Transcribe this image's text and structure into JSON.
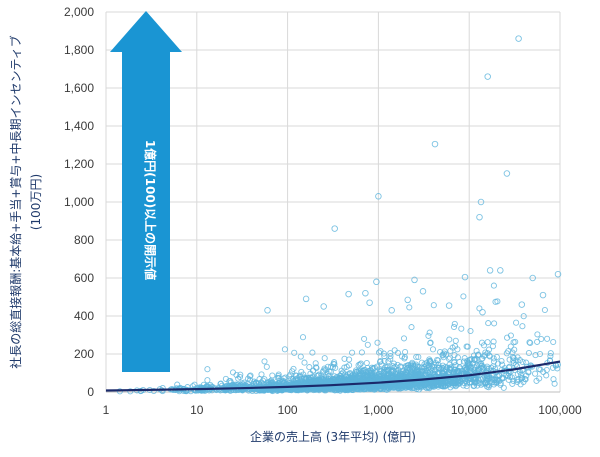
{
  "chart_data": {
    "type": "scatter",
    "title": "",
    "xlabel": "企業の売上高 (3年平均) (億円)",
    "ylabel": "社長の総直接報酬:基本給+手当+賞与+中長期インセンティブ",
    "ylabel_unit": "(100万円)",
    "x_scale": "log",
    "xlim": [
      1,
      100000
    ],
    "ylim": [
      0,
      2000
    ],
    "x_ticks": [
      1,
      10,
      100,
      1000,
      10000,
      100000
    ],
    "x_tick_labels": [
      "1",
      "10",
      "100",
      "1,000",
      "10,000",
      "100,000"
    ],
    "y_ticks": [
      0,
      200,
      400,
      600,
      800,
      1000,
      1200,
      1400,
      1600,
      1800,
      2000
    ],
    "y_tick_labels": [
      "0",
      "200",
      "400",
      "600",
      "800",
      "1,000",
      "1,200",
      "1,400",
      "1,600",
      "1,800",
      "2,000"
    ],
    "grid": true,
    "annotation": "1億円(100)以上の開示値",
    "colors": {
      "points": "#5db4dc",
      "trend": "#1b2a6b",
      "arrow": "#1a95d3",
      "grid": "#d9d9d9"
    },
    "trend_line": {
      "x": [
        1,
        3,
        10,
        30,
        100,
        300,
        1000,
        3000,
        10000,
        30000,
        100000
      ],
      "y": [
        8,
        11,
        15,
        20,
        27,
        36,
        49,
        65,
        88,
        118,
        160
      ]
    },
    "outliers": [
      {
        "x": 35000,
        "y": 1860
      },
      {
        "x": 16000,
        "y": 1660
      },
      {
        "x": 4200,
        "y": 1305
      },
      {
        "x": 26000,
        "y": 1150
      },
      {
        "x": 13500,
        "y": 1000
      },
      {
        "x": 1000,
        "y": 1030
      },
      {
        "x": 13000,
        "y": 920
      },
      {
        "x": 330,
        "y": 860
      },
      {
        "x": 17000,
        "y": 640
      },
      {
        "x": 22000,
        "y": 640
      },
      {
        "x": 9000,
        "y": 605
      },
      {
        "x": 95000,
        "y": 620
      },
      {
        "x": 50000,
        "y": 600
      },
      {
        "x": 2500,
        "y": 590
      },
      {
        "x": 950,
        "y": 580
      },
      {
        "x": 3100,
        "y": 530
      },
      {
        "x": 720,
        "y": 520
      },
      {
        "x": 470,
        "y": 515
      },
      {
        "x": 65000,
        "y": 510
      },
      {
        "x": 160,
        "y": 490
      },
      {
        "x": 2100,
        "y": 485
      },
      {
        "x": 800,
        "y": 470
      },
      {
        "x": 38000,
        "y": 460
      },
      {
        "x": 6000,
        "y": 455
      },
      {
        "x": 250,
        "y": 450
      },
      {
        "x": 60,
        "y": 430
      },
      {
        "x": 14000,
        "y": 420
      },
      {
        "x": 1400,
        "y": 430
      }
    ],
    "cluster_note": "about 3,000 companies; dense mass of points between 0 and 400 across the full sales range, concentrated below 150"
  }
}
